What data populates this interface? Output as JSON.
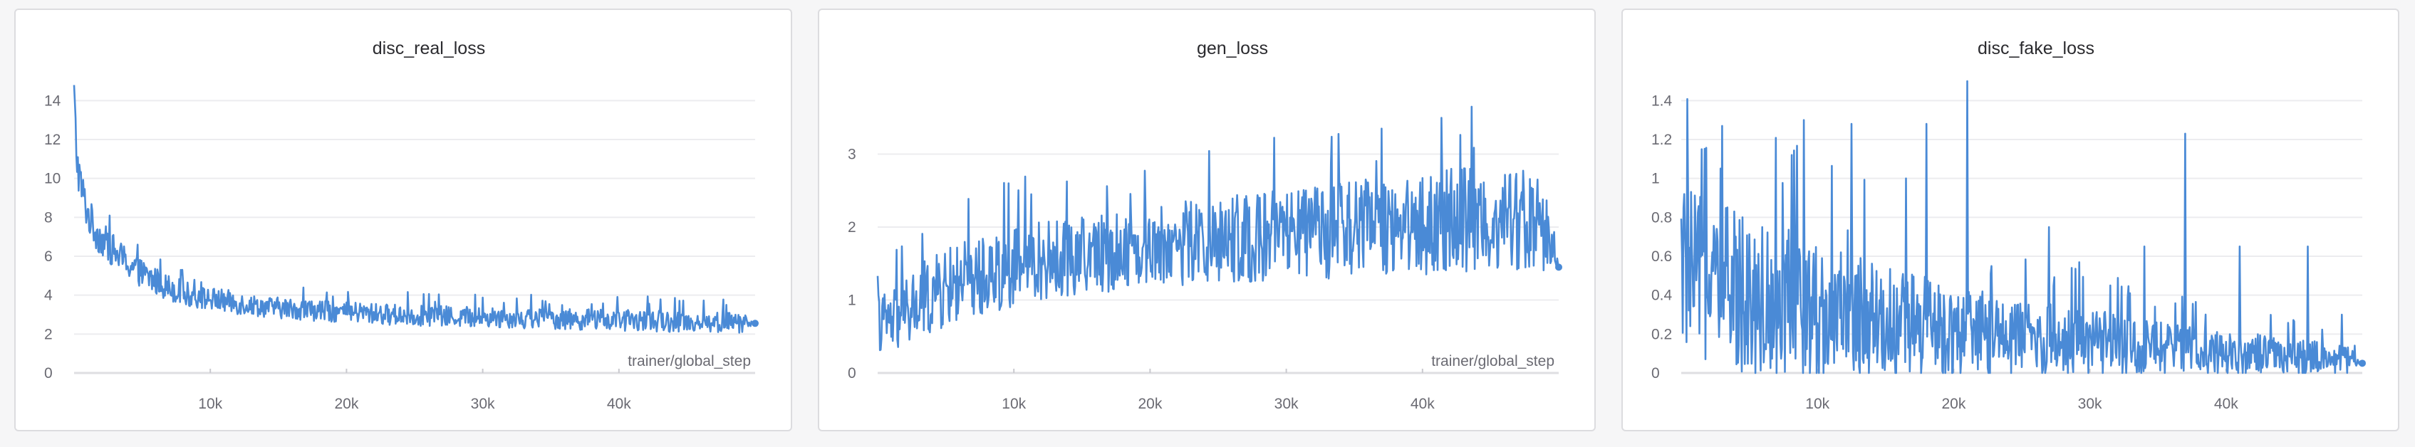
{
  "chart_data": [
    {
      "type": "line",
      "title": "disc_real_loss",
      "xlabel": "trainer/global_step",
      "ylabel": "",
      "xlim": [
        0,
        50000
      ],
      "ylim": [
        0,
        15
      ],
      "yticks": [
        0,
        2,
        4,
        6,
        8,
        10,
        12,
        14
      ],
      "ytick_labels": [
        "0",
        "2",
        "4",
        "6",
        "8",
        "10",
        "12",
        "14"
      ],
      "xticks": [
        10000,
        20000,
        30000,
        40000
      ],
      "xtick_labels": [
        "10k",
        "20k",
        "30k",
        "40k"
      ],
      "grid": true,
      "color": "#4a8ad6",
      "series": [
        {
          "x": [
            0,
            200,
            500,
            1000,
            1500,
            2000,
            3000,
            4000,
            5000,
            6000,
            7000,
            8000,
            9000,
            10000,
            11000,
            12000,
            13000,
            14000,
            15000,
            16000,
            17000,
            18000,
            19000,
            20000,
            21000,
            22000,
            23000,
            24000,
            25000,
            26000,
            27000,
            28000,
            29000,
            30000,
            31000,
            32000,
            33000,
            34000,
            35000,
            36000,
            37000,
            38000,
            39000,
            40000,
            41000,
            42000,
            43000,
            44000,
            45000,
            46000,
            47000,
            48000,
            49000,
            50000
          ],
          "values": [
            14.8,
            11.0,
            9.6,
            8.2,
            7.4,
            6.9,
            6.2,
            5.6,
            5.1,
            4.7,
            4.4,
            4.1,
            3.9,
            3.8,
            3.7,
            3.6,
            3.5,
            3.4,
            3.35,
            3.3,
            3.25,
            3.2,
            3.15,
            3.1,
            3.1,
            3.05,
            3.0,
            3.0,
            2.95,
            2.95,
            2.9,
            2.9,
            2.9,
            2.85,
            2.85,
            2.85,
            2.8,
            2.8,
            2.8,
            2.75,
            2.75,
            2.75,
            2.7,
            2.7,
            2.7,
            2.7,
            2.65,
            2.65,
            2.65,
            2.6,
            2.6,
            2.6,
            2.6,
            2.55
          ],
          "noise": [
            0.0,
            1.0,
            0.9,
            0.8,
            0.8,
            0.75,
            0.7,
            0.65,
            0.6,
            0.6,
            0.55,
            0.55,
            0.5,
            0.5,
            0.5,
            0.5,
            0.45,
            0.45,
            0.45,
            0.45,
            0.45,
            0.45,
            0.45,
            0.45,
            0.45,
            0.45,
            0.45,
            0.45,
            0.45,
            0.45,
            0.45,
            0.45,
            0.45,
            0.45,
            0.45,
            0.45,
            0.45,
            0.45,
            0.45,
            0.45,
            0.45,
            0.45,
            0.45,
            0.45,
            0.45,
            0.45,
            0.45,
            0.45,
            0.45,
            0.45,
            0.45,
            0.45,
            0.45,
            0.0
          ]
        }
      ]
    },
    {
      "type": "line",
      "title": "gen_loss",
      "xlabel": "trainer/global_step",
      "ylabel": "",
      "xlim": [
        0,
        50000
      ],
      "ylim": [
        0,
        4
      ],
      "yticks": [
        0,
        1,
        2,
        3
      ],
      "ytick_labels": [
        "0",
        "1",
        "2",
        "3"
      ],
      "xticks": [
        10000,
        20000,
        30000,
        40000
      ],
      "xtick_labels": [
        "10k",
        "20k",
        "30k",
        "40k"
      ],
      "grid": true,
      "color": "#4a8ad6",
      "series": [
        {
          "x": [
            0,
            1000,
            2000,
            3000,
            4000,
            5000,
            6000,
            7000,
            8000,
            9000,
            10000,
            11000,
            12000,
            13000,
            14000,
            15000,
            16000,
            17000,
            18000,
            19000,
            20000,
            21000,
            22000,
            23000,
            24000,
            25000,
            26000,
            27000,
            28000,
            29000,
            30000,
            31000,
            32000,
            33000,
            34000,
            35000,
            36000,
            37000,
            38000,
            39000,
            40000,
            41000,
            42000,
            43000,
            44000,
            45000,
            46000,
            47000,
            48000,
            49000,
            50000
          ],
          "values": [
            0.7,
            0.7,
            0.8,
            0.95,
            1.05,
            1.15,
            1.25,
            1.3,
            1.35,
            1.4,
            1.45,
            1.5,
            1.55,
            1.55,
            1.6,
            1.6,
            1.65,
            1.65,
            1.7,
            1.7,
            1.75,
            1.75,
            1.75,
            1.8,
            1.8,
            1.8,
            1.85,
            1.85,
            1.85,
            1.9,
            1.9,
            1.9,
            1.95,
            1.95,
            1.95,
            2.0,
            2.0,
            2.0,
            2.05,
            2.05,
            2.05,
            2.05,
            2.1,
            2.1,
            2.1,
            2.1,
            2.1,
            2.1,
            2.1,
            2.0,
            1.45
          ],
          "noise": [
            0.35,
            0.35,
            0.4,
            0.45,
            0.45,
            0.45,
            0.45,
            0.45,
            0.45,
            0.45,
            0.45,
            0.45,
            0.45,
            0.45,
            0.45,
            0.45,
            0.45,
            0.45,
            0.45,
            0.45,
            0.45,
            0.45,
            0.5,
            0.5,
            0.5,
            0.5,
            0.5,
            0.5,
            0.5,
            0.5,
            0.5,
            0.5,
            0.5,
            0.55,
            0.55,
            0.55,
            0.55,
            0.55,
            0.55,
            0.55,
            0.6,
            0.6,
            0.6,
            0.6,
            0.6,
            0.6,
            0.6,
            0.6,
            0.55,
            0.5,
            0.0
          ]
        }
      ]
    },
    {
      "type": "line",
      "title": "disc_fake_loss",
      "xlabel": "",
      "ylabel": "",
      "xlim": [
        0,
        50000
      ],
      "ylim": [
        0,
        1.5
      ],
      "yticks": [
        0,
        0.2,
        0.4,
        0.6,
        0.8,
        1,
        1.2,
        1.4
      ],
      "ytick_labels": [
        "0",
        "0.2",
        "0.4",
        "0.6",
        "0.8",
        "1",
        "1.2",
        "1.4"
      ],
      "xticks": [
        10000,
        20000,
        30000,
        40000
      ],
      "xtick_labels": [
        "10k",
        "20k",
        "30k",
        "40k"
      ],
      "grid": true,
      "color": "#4a8ad6",
      "series": [
        {
          "x": [
            0,
            1000,
            2000,
            3000,
            4000,
            5000,
            6000,
            7000,
            8000,
            9000,
            10000,
            11000,
            12000,
            13000,
            14000,
            15000,
            16000,
            17000,
            18000,
            19000,
            20000,
            21000,
            22000,
            23000,
            24000,
            25000,
            26000,
            27000,
            28000,
            29000,
            30000,
            31000,
            32000,
            33000,
            34000,
            35000,
            36000,
            37000,
            38000,
            39000,
            40000,
            41000,
            42000,
            43000,
            44000,
            45000,
            46000,
            47000,
            48000,
            49000,
            50000
          ],
          "values": [
            0.55,
            0.5,
            0.48,
            0.45,
            0.42,
            0.4,
            0.38,
            0.36,
            0.35,
            0.33,
            0.32,
            0.3,
            0.29,
            0.28,
            0.27,
            0.26,
            0.25,
            0.24,
            0.23,
            0.22,
            0.21,
            0.2,
            0.2,
            0.19,
            0.18,
            0.18,
            0.17,
            0.17,
            0.16,
            0.16,
            0.15,
            0.15,
            0.14,
            0.14,
            0.13,
            0.13,
            0.12,
            0.12,
            0.11,
            0.11,
            0.1,
            0.1,
            0.1,
            0.09,
            0.09,
            0.08,
            0.08,
            0.08,
            0.07,
            0.07,
            0.05
          ],
          "noise": [
            0.35,
            0.35,
            0.35,
            0.35,
            0.35,
            0.35,
            0.34,
            0.33,
            0.32,
            0.31,
            0.3,
            0.29,
            0.28,
            0.27,
            0.26,
            0.25,
            0.24,
            0.23,
            0.22,
            0.21,
            0.2,
            0.19,
            0.19,
            0.18,
            0.17,
            0.17,
            0.16,
            0.16,
            0.15,
            0.15,
            0.14,
            0.14,
            0.13,
            0.13,
            0.12,
            0.12,
            0.11,
            0.11,
            0.1,
            0.1,
            0.1,
            0.09,
            0.09,
            0.08,
            0.08,
            0.08,
            0.07,
            0.07,
            0.06,
            0.06,
            0.0
          ],
          "spikes": [
            [
              1500,
              1.15
            ],
            [
              3000,
              1.27
            ],
            [
              4500,
              0.8
            ],
            [
              9000,
              1.3
            ],
            [
              12500,
              1.28
            ],
            [
              16500,
              1.0
            ],
            [
              18000,
              1.28
            ],
            [
              21000,
              1.5
            ],
            [
              27000,
              0.75
            ],
            [
              31500,
              0.45
            ],
            [
              34000,
              0.65
            ],
            [
              37000,
              1.23
            ],
            [
              41000,
              0.65
            ],
            [
              46000,
              0.65
            ],
            [
              48500,
              0.3
            ]
          ]
        }
      ]
    }
  ]
}
